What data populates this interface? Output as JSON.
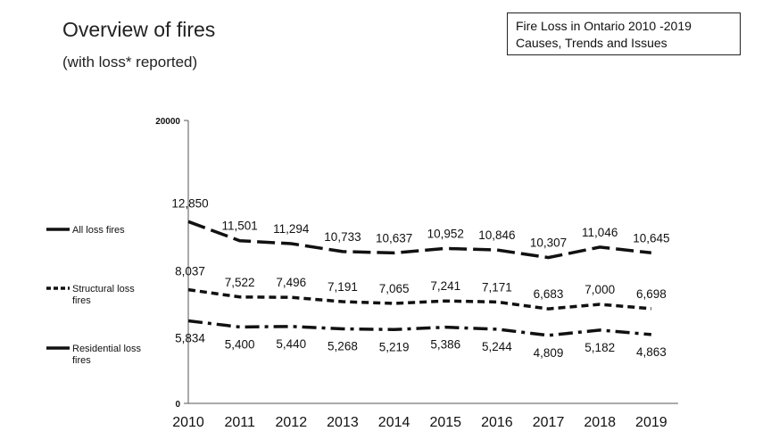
{
  "header": {
    "title": "Overview of fires",
    "subtitle": "(with loss* reported)"
  },
  "reference_box": {
    "line1": "Fire Loss in Ontario  2010 -2019",
    "line2": "Causes, Trends and Issues"
  },
  "chart_data": {
    "type": "line",
    "x": [
      "2010",
      "2011",
      "2012",
      "2013",
      "2014",
      "2015",
      "2016",
      "2017",
      "2018",
      "2019"
    ],
    "ylim": [
      0,
      20000
    ],
    "y_ticks": [
      "0",
      "20000"
    ],
    "grid": false,
    "legend_position": "left",
    "series": [
      {
        "name": "All loss fires",
        "style": "long-dash",
        "values": [
          12850,
          11501,
          11294,
          10733,
          10637,
          10952,
          10846,
          10307,
          11046,
          10645
        ],
        "labels": [
          "12,850",
          "11,501",
          "11,294",
          "10,733",
          "10,637",
          "10,952",
          "10,846",
          "10,307",
          "11,046",
          "10,645"
        ]
      },
      {
        "name": "Structural loss fires",
        "style": "short-dash",
        "values": [
          8037,
          7522,
          7496,
          7191,
          7065,
          7241,
          7171,
          6683,
          7000,
          6698
        ],
        "labels": [
          "8,037",
          "7,522",
          "7,496",
          "7,191",
          "7,065",
          "7,241",
          "7,171",
          "6,683",
          "7,000",
          "6,698"
        ]
      },
      {
        "name": "Residential loss fires",
        "style": "dash-dot",
        "values": [
          5834,
          5400,
          5440,
          5268,
          5219,
          5386,
          5244,
          4809,
          5182,
          4863
        ],
        "labels": [
          "5,834",
          "5,400",
          "5,440",
          "5,268",
          "5,219",
          "5,386",
          "5,244",
          "4,809",
          "5,182",
          "4,863"
        ]
      }
    ],
    "legend": [
      {
        "lines": [
          "All loss fires"
        ]
      },
      {
        "lines": [
          "Structural loss",
          "fires"
        ]
      },
      {
        "lines": [
          "Residential loss",
          "fires"
        ]
      }
    ],
    "colors": {
      "line": "#111111",
      "axis": "#555555"
    }
  }
}
